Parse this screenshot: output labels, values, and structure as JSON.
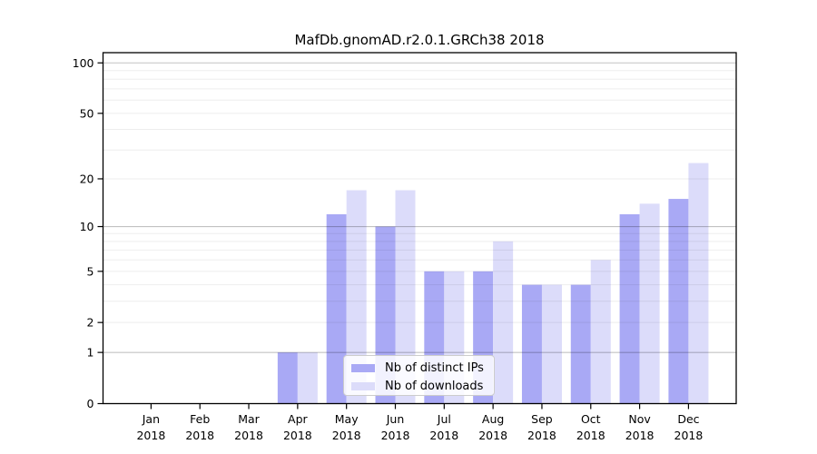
{
  "title": "MafDb.gnomAD.r2.0.1.GRCh38 2018",
  "colors": {
    "distinct_ips": "#a9a9f5",
    "downloads": "#dcdcfa",
    "axis": "#000000",
    "major_grid": "rgba(0,0,0,0.24)",
    "minor_grid": "rgba(0,0,0,0.07)"
  },
  "chart_data": {
    "type": "bar",
    "title": "MafDb.gnomAD.r2.0.1.GRCh38 2018",
    "categories": [
      "Jan",
      "Feb",
      "Mar",
      "Apr",
      "May",
      "Jun",
      "Jul",
      "Aug",
      "Sep",
      "Oct",
      "Nov",
      "Dec"
    ],
    "category_year": "2018",
    "series": [
      {
        "name": "Nb of distinct IPs",
        "color": "#a9a9f5",
        "values": [
          0,
          0,
          0,
          1,
          12,
          10,
          5,
          5,
          4,
          4,
          12,
          15
        ]
      },
      {
        "name": "Nb of downloads",
        "color": "#dcdcfa",
        "values": [
          0,
          0,
          0,
          1,
          17,
          17,
          5,
          8,
          4,
          6,
          14,
          25
        ]
      }
    ],
    "xlabel": "",
    "ylabel": "",
    "yscale": "log1p",
    "ylim": [
      0,
      115
    ],
    "yticks": [
      0,
      1,
      2,
      5,
      10,
      20,
      50,
      100
    ],
    "major_gridlines": [
      1,
      10,
      100
    ],
    "minor_gridlines": [
      2,
      3,
      4,
      5,
      6,
      7,
      8,
      9,
      20,
      30,
      40,
      50,
      60,
      70,
      80,
      90
    ],
    "grid": true,
    "legend_position": "lower-center"
  }
}
